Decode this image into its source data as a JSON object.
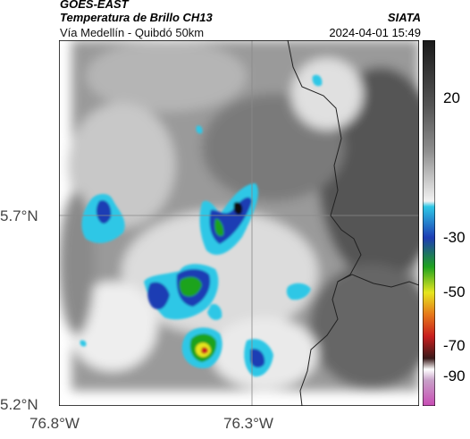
{
  "header": {
    "satellite": "GOES-EAST",
    "product": "Temperatura de Brillo CH13",
    "region": "Vía Medellín - Quibdó 50km",
    "organization": "SIATA",
    "datetime": "2024-04-01 15:49"
  },
  "axes": {
    "x_ticks": [
      "76.8°W",
      "76.3°W"
    ],
    "y_ticks": [
      "5.7°N",
      "5.2°N"
    ]
  },
  "colorbar": {
    "ticks": [
      "20",
      "-30",
      "-50",
      "-70",
      "-90"
    ],
    "colors": {
      "warm_dark": "#1a1a1a",
      "gray_mid": "#8c8c8c",
      "light": "#f2f2f2",
      "cyan": "#2ec7e6",
      "blue": "#1e3cb4",
      "green": "#1fa31f",
      "yellow": "#e6e61f",
      "orange": "#e6781a",
      "red": "#c81e1e",
      "magenta": "#c84bb4"
    }
  }
}
